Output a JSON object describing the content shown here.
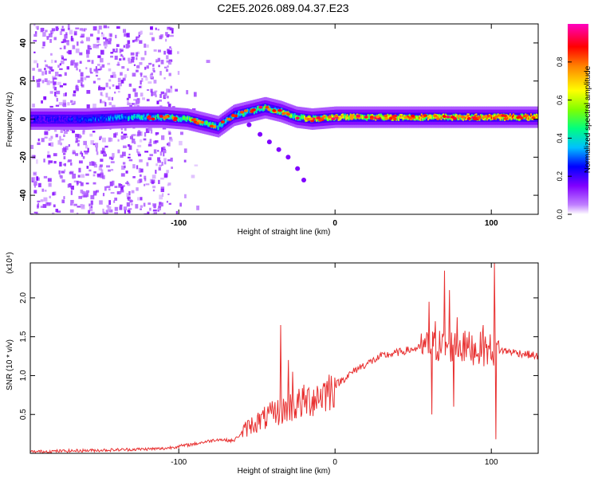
{
  "title": "C2E5.2026.089.04.37.E23",
  "chart_data": [
    {
      "type": "heatmap",
      "name": "spectrogram",
      "xlabel": "Height of straight line (km)",
      "ylabel": "Frequency (Hz)",
      "xlim": [
        -195,
        130
      ],
      "ylim": [
        -50,
        50
      ],
      "xticks": [
        -100,
        0,
        100
      ],
      "xtick_labels": [
        "-100",
        "0",
        "100"
      ],
      "yticks": [
        -40,
        -20,
        0,
        20,
        40
      ],
      "ytick_labels": [
        "-40",
        "-20",
        "0",
        "20",
        "40"
      ],
      "colorbar": {
        "label": "Normalized spectral amplitude",
        "range": [
          0,
          1
        ],
        "ticks": [
          0.0,
          0.2,
          0.4,
          0.6,
          0.8
        ],
        "tick_labels": [
          "0.0",
          "0.2",
          "0.4",
          "0.6",
          "0.8"
        ],
        "colors": [
          "#ffffff",
          "#c080ff",
          "#8000ff",
          "#0000ff",
          "#00c0ff",
          "#00ff80",
          "#80ff00",
          "#ffff00",
          "#ff8000",
          "#ff0000",
          "#ff00c0"
        ]
      },
      "ridge": {
        "x": [
          -195,
          -160,
          -130,
          -110,
          -95,
          -85,
          -75,
          -65,
          -55,
          -45,
          -35,
          -25,
          -15,
          0,
          20,
          50,
          80,
          100,
          130
        ],
        "freq": [
          0,
          0,
          1,
          1,
          0,
          -2,
          -4,
          2,
          4,
          6,
          4,
          1,
          0,
          1,
          1,
          1,
          1,
          1,
          1
        ],
        "amplitude": [
          0.25,
          0.3,
          0.45,
          0.55,
          0.6,
          0.55,
          0.5,
          0.45,
          0.5,
          0.55,
          0.6,
          0.65,
          0.7,
          0.75,
          0.8,
          0.8,
          0.8,
          0.85,
          0.85
        ]
      },
      "tail": {
        "x": [
          -55,
          -48,
          -42,
          -36,
          -30,
          -24,
          -20
        ],
        "freq": [
          -3,
          -8,
          -12,
          -16,
          -20,
          -26,
          -32
        ]
      }
    },
    {
      "type": "line",
      "name": "snr",
      "xlabel": "Height of straight line (km)",
      "ylabel": "SNR (10 * v/v)",
      "multiplier": "(x10⁴)",
      "xlim": [
        -195,
        130
      ],
      "ylim": [
        0,
        2.45
      ],
      "xticks": [
        -100,
        0,
        100
      ],
      "xtick_labels": [
        "-100",
        "0",
        "100"
      ],
      "yticks": [
        0.5,
        1.0,
        1.5,
        2.0
      ],
      "ytick_labels": [
        "0.5",
        "1.0",
        "1.5",
        "2.0"
      ],
      "color": "#e83030",
      "baseline": {
        "x": [
          -195,
          -150,
          -110,
          -90,
          -75,
          -65,
          -55,
          -45,
          -35,
          -25,
          -15,
          -5,
          5,
          15,
          30,
          45,
          55,
          65,
          75,
          85,
          95,
          105,
          115,
          130
        ],
        "y": [
          0.02,
          0.04,
          0.06,
          0.12,
          0.18,
          0.16,
          0.35,
          0.45,
          0.55,
          0.62,
          0.7,
          0.8,
          0.95,
          1.1,
          1.25,
          1.32,
          1.36,
          1.38,
          1.38,
          1.36,
          1.34,
          1.33,
          1.3,
          1.25
        ]
      },
      "spikes": [
        {
          "x": -35,
          "y": 1.65
        },
        {
          "x": -30,
          "y": 1.2
        },
        {
          "x": -27,
          "y": 1.05
        },
        {
          "x": 60,
          "y": 1.95
        },
        {
          "x": 64,
          "y": 1.7
        },
        {
          "x": 70,
          "y": 2.35
        },
        {
          "x": 73,
          "y": 2.1
        },
        {
          "x": 78,
          "y": 1.75
        },
        {
          "x": 82,
          "y": 1.55
        },
        {
          "x": 95,
          "y": 1.65
        },
        {
          "x": 102,
          "y": 2.45
        },
        {
          "x": 103,
          "y": 0.18
        },
        {
          "x": 62,
          "y": 0.5
        },
        {
          "x": 76,
          "y": 0.6
        }
      ]
    }
  ]
}
